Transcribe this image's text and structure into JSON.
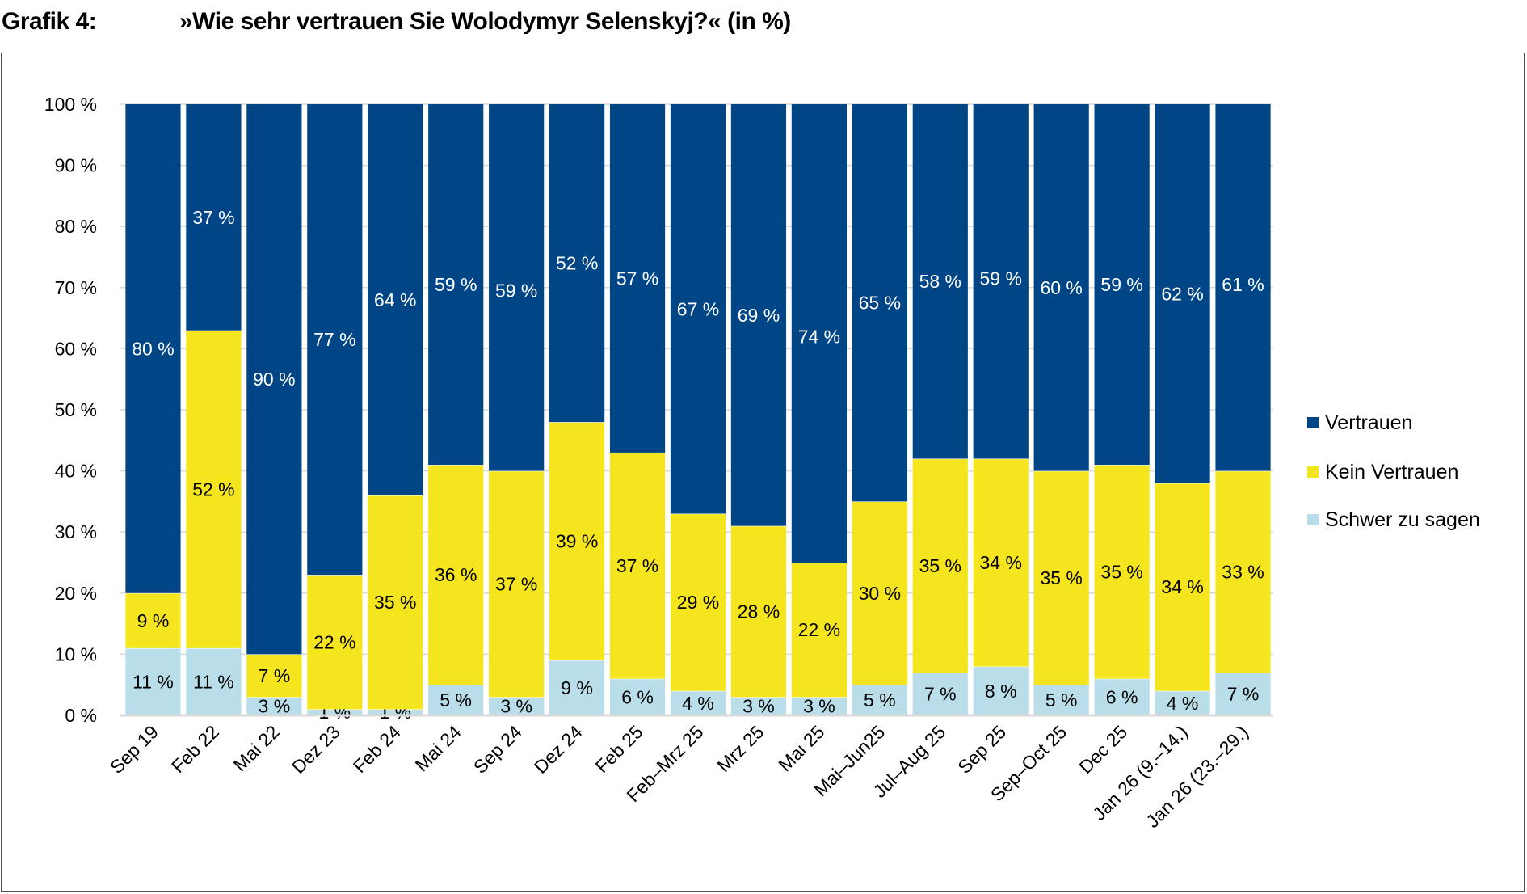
{
  "header": {
    "figure_number": "Grafik 4:",
    "title": "»Wie sehr vertrauen Sie Wolodymyr Selenskyj?« (in %)"
  },
  "chart_data": {
    "type": "bar",
    "stacked": true,
    "title": "»Wie sehr vertrauen Sie Wolodymyr Selenskyj?« (in %)",
    "xlabel": "",
    "ylabel": "",
    "ylim": [
      0,
      100
    ],
    "yticks": [
      0,
      10,
      20,
      30,
      40,
      50,
      60,
      70,
      80,
      90,
      100
    ],
    "ytick_suffix": " %",
    "grid": true,
    "legend_placement": "right",
    "categories": [
      "Sep 19",
      "Feb 22",
      "Mai 22",
      "Dez 23",
      "Feb 24",
      "Mai 24",
      "Sep 24",
      "Dez 24",
      "Feb 25",
      "Feb–Mrz 25",
      "Mrz 25",
      "Mai 25",
      "Mai–Jun25",
      "Jul–Aug 25",
      "Sep 25",
      "Sep–Oct 25",
      "Dec 25",
      "Jan 26 (9.–14.)",
      "Jan 26 (23.–29.)"
    ],
    "series": [
      {
        "name": "Schwer zu sagen",
        "color": "#b9dde9",
        "label_color": "#000000",
        "values": [
          11,
          11,
          3,
          1,
          1,
          5,
          3,
          9,
          6,
          4,
          3,
          3,
          5,
          7,
          8,
          5,
          6,
          4,
          7
        ]
      },
      {
        "name": "Kein Vertrauen",
        "color": "#f5e51f",
        "label_color": "#000000",
        "values": [
          9,
          52,
          7,
          22,
          35,
          36,
          37,
          39,
          37,
          29,
          28,
          22,
          30,
          35,
          34,
          35,
          35,
          34,
          33
        ]
      },
      {
        "name": "Vertrauen",
        "color": "#004585",
        "label_color": "#ffffff",
        "values": [
          80,
          37,
          90,
          77,
          64,
          59,
          59,
          52,
          57,
          67,
          69,
          74,
          65,
          58,
          59,
          60,
          59,
          62,
          61
        ]
      }
    ],
    "legend_order": [
      "Vertrauen",
      "Kein Vertrauen",
      "Schwer zu sagen"
    ]
  }
}
